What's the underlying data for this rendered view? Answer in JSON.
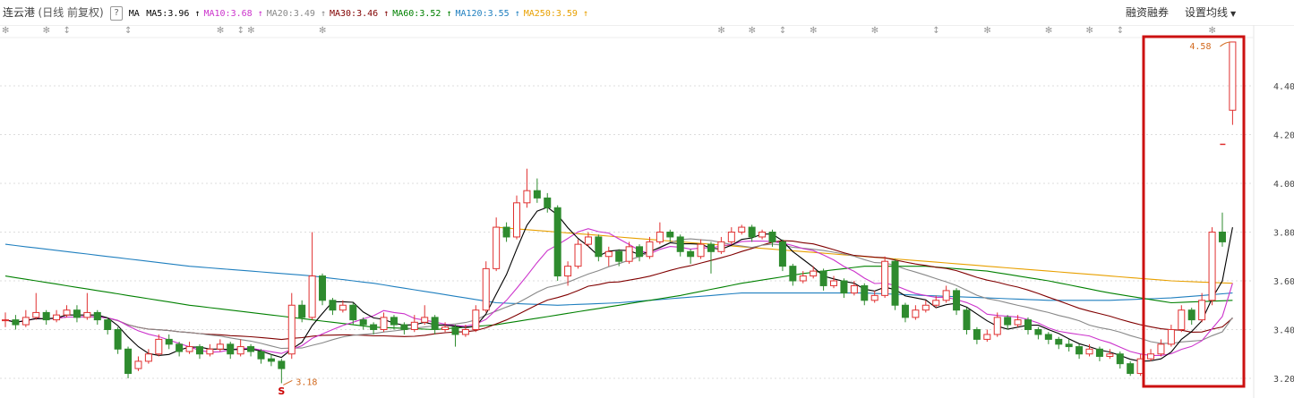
{
  "header": {
    "stock_name": "连云港",
    "mode": "(日线 前复权)",
    "help": "?",
    "ma_label": "MA",
    "mas": [
      {
        "label": "MA5:3.96",
        "color": "#000000"
      },
      {
        "label": "MA10:3.68",
        "color": "#cc33cc"
      },
      {
        "label": "MA20:3.49",
        "color": "#888888"
      },
      {
        "label": "MA30:3.46",
        "color": "#800000"
      },
      {
        "label": "MA60:3.52",
        "color": "#008000"
      },
      {
        "label": "MA120:3.55",
        "color": "#1f7fbf"
      },
      {
        "label": "MA250:3.59",
        "color": "#e8a000"
      }
    ],
    "arrow": "↑",
    "margin_trading": "融资融券",
    "set_ma": "设置均线"
  },
  "colors": {
    "up": "#e03030",
    "down": "#2e8b2e",
    "highlight_box": "#cc1111",
    "annotation": "#d2691e"
  },
  "chart_data": {
    "type": "candlestick",
    "y_ticks": [
      "4.40",
      "4.20",
      "4.00",
      "3.80",
      "3.60",
      "3.40",
      "3.20"
    ],
    "ylim": [
      3.17,
      4.63
    ],
    "grid": true,
    "annotations": {
      "low": "3.18",
      "high": "4.58",
      "limit_marker": 4.16,
      "signal": "S"
    },
    "candles": [
      [
        3.44,
        3.47,
        3.41,
        3.44
      ],
      [
        3.44,
        3.46,
        3.4,
        3.42
      ],
      [
        3.42,
        3.48,
        3.41,
        3.45
      ],
      [
        3.45,
        3.55,
        3.44,
        3.47
      ],
      [
        3.47,
        3.48,
        3.42,
        3.44
      ],
      [
        3.44,
        3.48,
        3.43,
        3.46
      ],
      [
        3.46,
        3.5,
        3.45,
        3.48
      ],
      [
        3.48,
        3.5,
        3.43,
        3.45
      ],
      [
        3.45,
        3.55,
        3.44,
        3.47
      ],
      [
        3.47,
        3.48,
        3.42,
        3.44
      ],
      [
        3.44,
        3.45,
        3.38,
        3.4
      ],
      [
        3.4,
        3.41,
        3.3,
        3.32
      ],
      [
        3.32,
        3.33,
        3.2,
        3.22
      ],
      [
        3.24,
        3.29,
        3.23,
        3.27
      ],
      [
        3.27,
        3.32,
        3.26,
        3.3
      ],
      [
        3.3,
        3.38,
        3.29,
        3.36
      ],
      [
        3.36,
        3.38,
        3.32,
        3.34
      ],
      [
        3.34,
        3.35,
        3.29,
        3.31
      ],
      [
        3.31,
        3.35,
        3.3,
        3.33
      ],
      [
        3.33,
        3.34,
        3.28,
        3.3
      ],
      [
        3.3,
        3.34,
        3.29,
        3.32
      ],
      [
        3.32,
        3.36,
        3.31,
        3.34
      ],
      [
        3.34,
        3.35,
        3.28,
        3.3
      ],
      [
        3.3,
        3.36,
        3.29,
        3.33
      ],
      [
        3.33,
        3.34,
        3.29,
        3.31
      ],
      [
        3.31,
        3.32,
        3.26,
        3.28
      ],
      [
        3.28,
        3.3,
        3.25,
        3.27
      ],
      [
        3.27,
        3.28,
        3.18,
        3.24
      ],
      [
        3.3,
        3.55,
        3.28,
        3.5
      ],
      [
        3.5,
        3.52,
        3.43,
        3.45
      ],
      [
        3.45,
        3.8,
        3.44,
        3.62
      ],
      [
        3.62,
        3.63,
        3.5,
        3.52
      ],
      [
        3.52,
        3.53,
        3.46,
        3.48
      ],
      [
        3.48,
        3.52,
        3.47,
        3.5
      ],
      [
        3.5,
        3.51,
        3.42,
        3.44
      ],
      [
        3.44,
        3.45,
        3.4,
        3.42
      ],
      [
        3.42,
        3.43,
        3.38,
        3.4
      ],
      [
        3.4,
        3.47,
        3.39,
        3.45
      ],
      [
        3.45,
        3.46,
        3.4,
        3.42
      ],
      [
        3.42,
        3.43,
        3.38,
        3.4
      ],
      [
        3.4,
        3.46,
        3.39,
        3.43
      ],
      [
        3.43,
        3.5,
        3.42,
        3.45
      ],
      [
        3.45,
        3.46,
        3.38,
        3.4
      ],
      [
        3.4,
        3.43,
        3.39,
        3.41
      ],
      [
        3.41,
        3.42,
        3.33,
        3.38
      ],
      [
        3.38,
        3.42,
        3.37,
        3.4
      ],
      [
        3.4,
        3.5,
        3.39,
        3.48
      ],
      [
        3.48,
        3.68,
        3.47,
        3.65
      ],
      [
        3.65,
        3.86,
        3.64,
        3.82
      ],
      [
        3.82,
        3.84,
        3.76,
        3.78
      ],
      [
        3.78,
        3.95,
        3.77,
        3.92
      ],
      [
        3.92,
        4.06,
        3.9,
        3.97
      ],
      [
        3.97,
        4.02,
        3.92,
        3.94
      ],
      [
        3.94,
        3.96,
        3.88,
        3.9
      ],
      [
        3.9,
        3.91,
        3.6,
        3.62
      ],
      [
        3.62,
        3.68,
        3.58,
        3.66
      ],
      [
        3.66,
        3.77,
        3.65,
        3.75
      ],
      [
        3.75,
        3.8,
        3.74,
        3.78
      ],
      [
        3.78,
        3.79,
        3.68,
        3.7
      ],
      [
        3.7,
        3.74,
        3.66,
        3.72
      ],
      [
        3.72,
        3.73,
        3.66,
        3.68
      ],
      [
        3.68,
        3.76,
        3.67,
        3.74
      ],
      [
        3.74,
        3.75,
        3.68,
        3.7
      ],
      [
        3.7,
        3.78,
        3.69,
        3.76
      ],
      [
        3.76,
        3.84,
        3.75,
        3.8
      ],
      [
        3.8,
        3.81,
        3.76,
        3.78
      ],
      [
        3.78,
        3.79,
        3.7,
        3.72
      ],
      [
        3.72,
        3.73,
        3.67,
        3.7
      ],
      [
        3.7,
        3.77,
        3.69,
        3.75
      ],
      [
        3.75,
        3.76,
        3.63,
        3.72
      ],
      [
        3.72,
        3.78,
        3.71,
        3.76
      ],
      [
        3.76,
        3.82,
        3.75,
        3.8
      ],
      [
        3.8,
        3.83,
        3.79,
        3.82
      ],
      [
        3.82,
        3.83,
        3.76,
        3.78
      ],
      [
        3.78,
        3.81,
        3.77,
        3.8
      ],
      [
        3.8,
        3.81,
        3.74,
        3.76
      ],
      [
        3.76,
        3.77,
        3.64,
        3.66
      ],
      [
        3.66,
        3.67,
        3.58,
        3.6
      ],
      [
        3.6,
        3.64,
        3.59,
        3.62
      ],
      [
        3.62,
        3.66,
        3.61,
        3.64
      ],
      [
        3.64,
        3.65,
        3.56,
        3.58
      ],
      [
        3.58,
        3.62,
        3.57,
        3.6
      ],
      [
        3.6,
        3.61,
        3.53,
        3.55
      ],
      [
        3.55,
        3.6,
        3.54,
        3.58
      ],
      [
        3.58,
        3.59,
        3.5,
        3.52
      ],
      [
        3.52,
        3.56,
        3.51,
        3.54
      ],
      [
        3.54,
        3.7,
        3.53,
        3.68
      ],
      [
        3.68,
        3.69,
        3.48,
        3.5
      ],
      [
        3.5,
        3.51,
        3.43,
        3.45
      ],
      [
        3.45,
        3.5,
        3.44,
        3.48
      ],
      [
        3.48,
        3.52,
        3.47,
        3.5
      ],
      [
        3.5,
        3.54,
        3.49,
        3.52
      ],
      [
        3.52,
        3.58,
        3.51,
        3.56
      ],
      [
        3.56,
        3.57,
        3.46,
        3.48
      ],
      [
        3.48,
        3.49,
        3.38,
        3.4
      ],
      [
        3.4,
        3.41,
        3.34,
        3.36
      ],
      [
        3.36,
        3.4,
        3.35,
        3.38
      ],
      [
        3.38,
        3.47,
        3.37,
        3.45
      ],
      [
        3.45,
        3.46,
        3.4,
        3.42
      ],
      [
        3.42,
        3.46,
        3.41,
        3.44
      ],
      [
        3.44,
        3.45,
        3.38,
        3.4
      ],
      [
        3.4,
        3.41,
        3.36,
        3.38
      ],
      [
        3.38,
        3.39,
        3.34,
        3.36
      ],
      [
        3.36,
        3.37,
        3.32,
        3.34
      ],
      [
        3.34,
        3.36,
        3.31,
        3.33
      ],
      [
        3.33,
        3.34,
        3.28,
        3.3
      ],
      [
        3.3,
        3.34,
        3.29,
        3.32
      ],
      [
        3.32,
        3.33,
        3.27,
        3.29
      ],
      [
        3.29,
        3.32,
        3.28,
        3.3
      ],
      [
        3.3,
        3.31,
        3.24,
        3.26
      ],
      [
        3.26,
        3.27,
        3.21,
        3.22
      ],
      [
        3.22,
        3.3,
        3.21,
        3.28
      ],
      [
        3.28,
        3.32,
        3.27,
        3.3
      ],
      [
        3.3,
        3.36,
        3.29,
        3.34
      ],
      [
        3.34,
        3.42,
        3.33,
        3.4
      ],
      [
        3.4,
        3.5,
        3.39,
        3.48
      ],
      [
        3.48,
        3.49,
        3.42,
        3.44
      ],
      [
        3.44,
        3.55,
        3.43,
        3.52
      ],
      [
        3.52,
        3.82,
        3.5,
        3.8
      ],
      [
        3.8,
        3.88,
        3.74,
        3.76
      ],
      [
        4.3,
        4.58,
        4.24,
        4.58
      ]
    ],
    "ma60_samples": [
      3.62,
      3.58,
      3.54,
      3.5,
      3.47,
      3.44,
      3.41,
      3.4,
      3.42,
      3.46,
      3.5,
      3.54,
      3.59,
      3.63,
      3.66,
      3.66,
      3.64,
      3.6,
      3.55,
      3.51,
      3.52
    ],
    "ma120_samples": [
      3.75,
      3.72,
      3.69,
      3.66,
      3.64,
      3.62,
      3.59,
      3.55,
      3.51,
      3.5,
      3.51,
      3.53,
      3.55,
      3.55,
      3.55,
      3.54,
      3.53,
      3.52,
      3.52,
      3.53,
      3.55
    ],
    "ma250_samples": [
      null,
      null,
      null,
      null,
      null,
      null,
      null,
      null,
      3.82,
      3.8,
      3.78,
      3.76,
      3.74,
      3.72,
      3.7,
      3.68,
      3.66,
      3.64,
      3.62,
      3.6,
      3.59
    ],
    "markers": [
      {
        "index": 0,
        "glyph": "✻"
      },
      {
        "index": 4,
        "glyph": "✻"
      },
      {
        "index": 6,
        "glyph": "↕"
      },
      {
        "index": 12,
        "glyph": "↕"
      },
      {
        "index": 21,
        "glyph": "✻"
      },
      {
        "index": 23,
        "glyph": "↕"
      },
      {
        "index": 24,
        "glyph": "✻"
      },
      {
        "index": 31,
        "glyph": "✻"
      },
      {
        "index": 70,
        "glyph": "✻"
      },
      {
        "index": 73,
        "glyph": "✻"
      },
      {
        "index": 76,
        "glyph": "↕"
      },
      {
        "index": 79,
        "glyph": "✻"
      },
      {
        "index": 85,
        "glyph": "✻"
      },
      {
        "index": 91,
        "glyph": "↕"
      },
      {
        "index": 96,
        "glyph": "✻"
      },
      {
        "index": 102,
        "glyph": "✻"
      },
      {
        "index": 106,
        "glyph": "✻"
      },
      {
        "index": 109,
        "glyph": "↕"
      },
      {
        "index": 118,
        "glyph": "✻"
      }
    ]
  }
}
